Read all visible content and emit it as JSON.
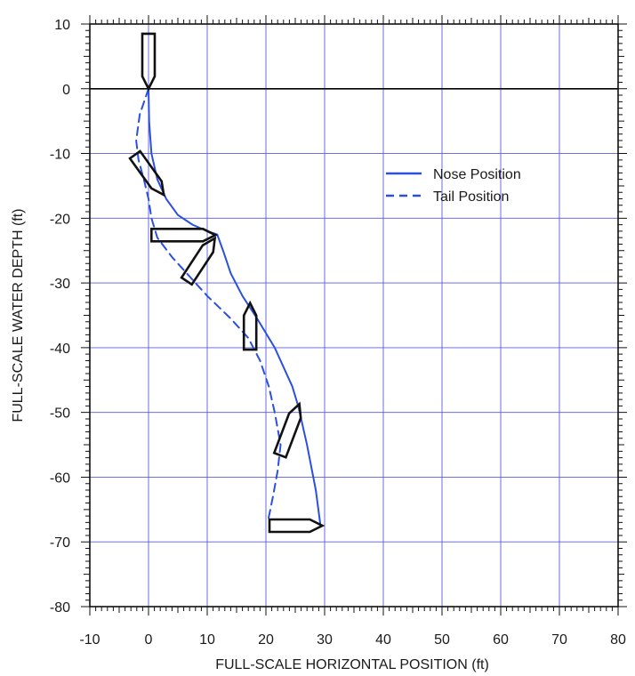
{
  "chart_data": {
    "type": "line",
    "title": "",
    "xlabel": "FULL-SCALE HORIZONTAL POSITION (ft)",
    "ylabel": "FULL-SCALE WATER DEPTH (ft)",
    "xlim": [
      -10,
      80
    ],
    "ylim": [
      -80,
      10
    ],
    "x_ticks": [
      -10,
      0,
      10,
      20,
      30,
      40,
      50,
      60,
      70,
      80
    ],
    "y_ticks": [
      10,
      0,
      -10,
      -20,
      -30,
      -40,
      -50,
      -60,
      -70,
      -80
    ],
    "x_tick_labels": [
      "-10",
      "0",
      "10",
      "20",
      "30",
      "40",
      "50",
      "60",
      "70",
      "80"
    ],
    "y_tick_labels": [
      "10",
      "0",
      "-10",
      "-20",
      "-30",
      "-40",
      "-50",
      "-60",
      "-70",
      "-80"
    ],
    "grid": true,
    "legend_position": "upper-right",
    "colors": {
      "series": "#2b50e0",
      "grid": "#5b5be0",
      "axis": "#111111",
      "zero_line": "#000000"
    },
    "series": [
      {
        "name": "Nose Position",
        "style": "solid",
        "x": [
          0,
          0.1,
          0.5,
          1.5,
          3,
          5,
          7.5,
          10,
          11.7,
          12.7,
          14,
          16,
          18.5,
          21.5,
          24.5,
          25.5,
          27,
          28.5,
          29.3
        ],
        "y": [
          0,
          -5,
          -10,
          -14,
          -17,
          -19.5,
          -21,
          -22,
          -22.5,
          -25,
          -28.5,
          -32,
          -35.5,
          -40,
          -46,
          -49,
          -55,
          -62,
          -67.5
        ]
      },
      {
        "name": "Tail Position",
        "style": "dashed",
        "x": [
          0,
          -1.5,
          -2.1,
          -1.7,
          -0.8,
          0,
          0.5,
          1.5,
          4,
          7,
          10,
          14,
          17,
          19,
          20.5,
          21.5,
          22.5,
          22,
          21.2,
          20.3
        ],
        "y": [
          0,
          -4,
          -8,
          -11,
          -14,
          -17,
          -20,
          -23,
          -26,
          -29,
          -32,
          -35.5,
          -38.5,
          -42,
          -46,
          -50,
          -55,
          -59,
          -63,
          -67
        ]
      }
    ],
    "markers": [
      {
        "nose": [
          0,
          0
        ],
        "tail": [
          0,
          8.5
        ]
      },
      {
        "nose": [
          2.6,
          -16.4
        ],
        "tail": [
          -2.3,
          -10.2
        ]
      },
      {
        "nose": [
          11.4,
          -22.6
        ],
        "tail": [
          0.5,
          -22.6
        ]
      },
      {
        "nose": [
          11.3,
          -23.1
        ],
        "tail": [
          6.5,
          -29.7
        ]
      },
      {
        "nose": [
          17.3,
          -33.1
        ],
        "tail": [
          17.3,
          -40.3
        ]
      },
      {
        "nose": [
          25.7,
          -48.7
        ],
        "tail": [
          22.4,
          -56.6
        ]
      },
      {
        "nose": [
          29.6,
          -67.5
        ],
        "tail": [
          20.6,
          -67.5
        ]
      }
    ]
  }
}
